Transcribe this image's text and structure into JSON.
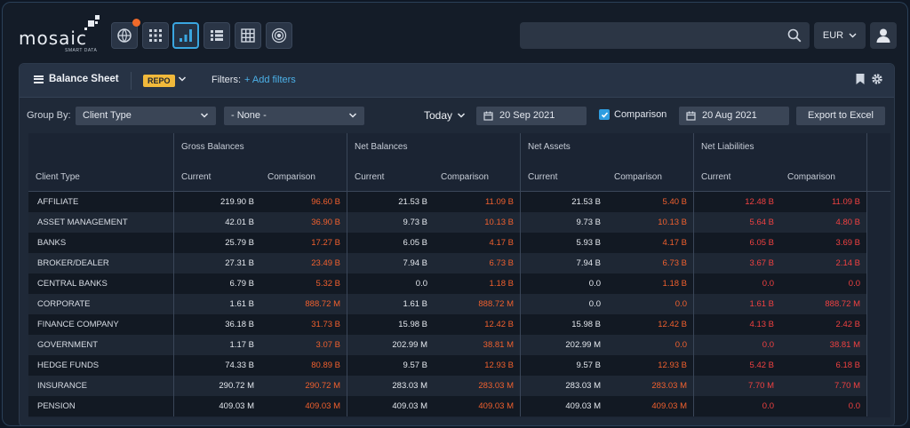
{
  "app": {
    "logo_text": "mosaic",
    "logo_sub": "SMART DATA"
  },
  "nav": [
    {
      "name": "globe-icon",
      "active": false,
      "notification": true
    },
    {
      "name": "apps-grid-icon",
      "active": false
    },
    {
      "name": "bar-chart-icon",
      "active": true
    },
    {
      "name": "list-icon",
      "active": false
    },
    {
      "name": "table-icon",
      "active": false
    },
    {
      "name": "radar-icon",
      "active": false
    }
  ],
  "search": {
    "placeholder": ""
  },
  "currency": {
    "value": "EUR"
  },
  "panel": {
    "title": "Balance Sheet",
    "product_badge": "REPO",
    "filters_label": "Filters:",
    "add_filters": "+ Add filters"
  },
  "controls": {
    "group_by_label": "Group By:",
    "group_by_value": "Client Type",
    "secondary_group": "- None -",
    "period": "Today",
    "date": "20 Sep 2021",
    "comparison_label": "Comparison",
    "comparison_checked": true,
    "comparison_date": "20 Aug 2021",
    "export_label": "Export to Excel"
  },
  "table": {
    "row_header": "Client Type",
    "groups": [
      "Gross Balances",
      "Net Balances",
      "Net Assets",
      "Net Liabilities"
    ],
    "subcols": [
      "Current",
      "Comparison"
    ],
    "rows": [
      {
        "client": "AFFILIATE",
        "values": [
          "219.90 B",
          "96.60 B",
          "21.53 B",
          "11.09 B",
          "21.53 B",
          "5.40 B",
          "12.48 B",
          "11.09 B"
        ]
      },
      {
        "client": "ASSET MANAGEMENT",
        "values": [
          "42.01 B",
          "36.90 B",
          "9.73 B",
          "10.13 B",
          "9.73 B",
          "10.13 B",
          "5.64 B",
          "4.80 B"
        ]
      },
      {
        "client": "BANKS",
        "values": [
          "25.79 B",
          "17.27 B",
          "6.05 B",
          "4.17 B",
          "5.93 B",
          "4.17 B",
          "6.05 B",
          "3.69 B"
        ]
      },
      {
        "client": "BROKER/DEALER",
        "values": [
          "27.31 B",
          "23.49 B",
          "7.94 B",
          "6.73 B",
          "7.94 B",
          "6.73 B",
          "3.67 B",
          "2.14 B"
        ]
      },
      {
        "client": "CENTRAL BANKS",
        "values": [
          "6.79 B",
          "5.32 B",
          "0.0",
          "1.18 B",
          "0.0",
          "1.18 B",
          "0.0",
          "0.0"
        ]
      },
      {
        "client": "CORPORATE",
        "values": [
          "1.61 B",
          "888.72 M",
          "1.61 B",
          "888.72 M",
          "0.0",
          "0.0",
          "1.61 B",
          "888.72 M"
        ]
      },
      {
        "client": "FINANCE COMPANY",
        "values": [
          "36.18 B",
          "31.73 B",
          "15.98 B",
          "12.42 B",
          "15.98 B",
          "12.42 B",
          "4.13 B",
          "2.42 B"
        ]
      },
      {
        "client": "GOVERNMENT",
        "values": [
          "1.17 B",
          "3.07 B",
          "202.99 M",
          "38.81 M",
          "202.99 M",
          "0.0",
          "0.0",
          "38.81 M"
        ]
      },
      {
        "client": "HEDGE FUNDS",
        "values": [
          "74.33 B",
          "80.89 B",
          "9.57 B",
          "12.93 B",
          "9.57 B",
          "12.93 B",
          "5.42 B",
          "6.18 B"
        ]
      },
      {
        "client": "INSURANCE",
        "values": [
          "290.72 M",
          "290.72 M",
          "283.03 M",
          "283.03 M",
          "283.03 M",
          "283.03 M",
          "7.70 M",
          "7.70 M"
        ]
      },
      {
        "client": "PENSION",
        "values": [
          "409.03 M",
          "409.03 M",
          "409.03 M",
          "409.03 M",
          "409.03 M",
          "409.03 M",
          "0.0",
          "0.0"
        ]
      }
    ]
  },
  "colors": {
    "accent": "#3aa6e0",
    "comparison": "#f0602e",
    "liability": "#f04141",
    "badge": "#f1b93b"
  }
}
